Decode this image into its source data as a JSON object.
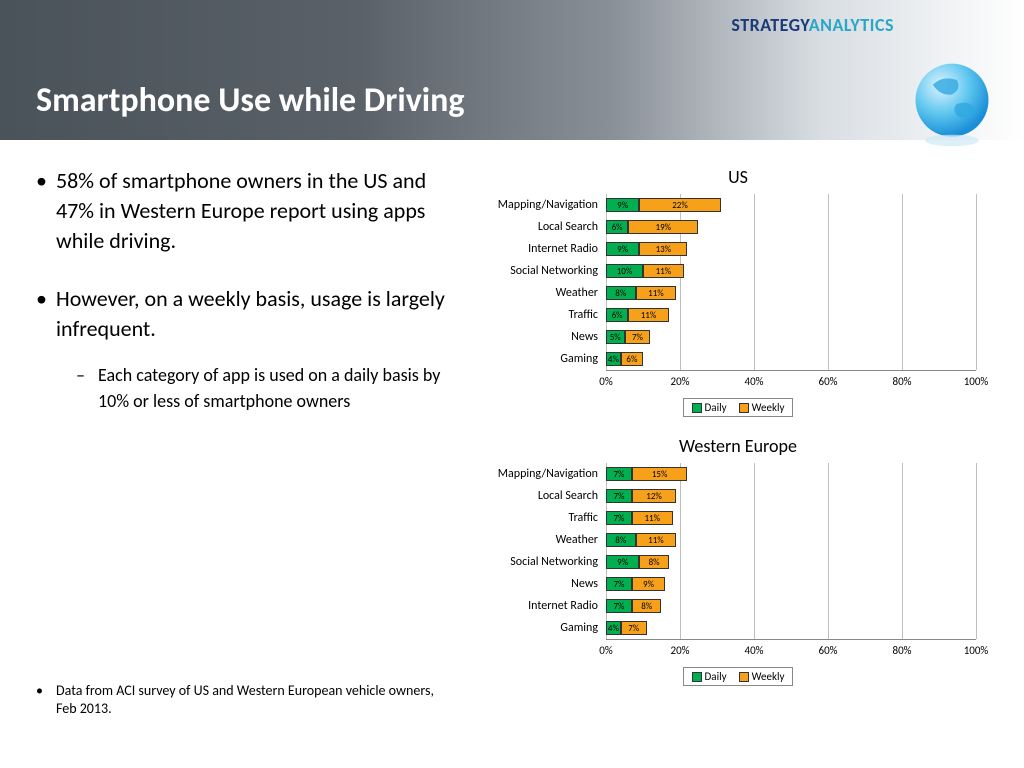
{
  "brand": {
    "part1": "STRATEGY",
    "part2": "ANALYTICS"
  },
  "title": "Smartphone Use while Driving",
  "bullets": [
    "58% of smartphone owners in the US and 47% in Western Europe report using apps while driving.",
    "However, on a weekly basis, usage is largely infrequent."
  ],
  "sub_bullet": "Each category of app is used on a daily basis by 10% or less of smartphone owners",
  "footnote": "Data from ACI survey of US and Western European vehicle owners, Feb 2013.",
  "colors": {
    "daily": "#00b050",
    "weekly": "#f7a11a",
    "grid": "#bfbfbf",
    "axis": "#888888",
    "text": "#000000"
  },
  "x_axis": {
    "min": 0,
    "max": 100,
    "step": 20,
    "ticks": [
      "0%",
      "20%",
      "40%",
      "60%",
      "80%",
      "100%"
    ]
  },
  "legend": {
    "daily": "Daily",
    "weekly": "Weekly"
  },
  "charts": [
    {
      "title": "US",
      "type": "stacked-horizontal-bar",
      "rows": [
        {
          "label": "Mapping/Navigation",
          "daily": 9,
          "weekly": 22
        },
        {
          "label": "Local Search",
          "daily": 6,
          "weekly": 19
        },
        {
          "label": "Internet Radio",
          "daily": 9,
          "weekly": 13
        },
        {
          "label": "Social Networking",
          "daily": 10,
          "weekly": 11
        },
        {
          "label": "Weather",
          "daily": 8,
          "weekly": 11
        },
        {
          "label": "Traffic",
          "daily": 6,
          "weekly": 11
        },
        {
          "label": "News",
          "daily": 5,
          "weekly": 7
        },
        {
          "label": "Gaming",
          "daily": 4,
          "weekly": 6
        }
      ]
    },
    {
      "title": "Western Europe",
      "type": "stacked-horizontal-bar",
      "rows": [
        {
          "label": "Mapping/Navigation",
          "daily": 7,
          "weekly": 15
        },
        {
          "label": "Local Search",
          "daily": 7,
          "weekly": 12
        },
        {
          "label": "Traffic",
          "daily": 7,
          "weekly": 11
        },
        {
          "label": "Weather",
          "daily": 8,
          "weekly": 11
        },
        {
          "label": "Social Networking",
          "daily": 9,
          "weekly": 8
        },
        {
          "label": "News",
          "daily": 7,
          "weekly": 9
        },
        {
          "label": "Internet Radio",
          "daily": 7,
          "weekly": 8
        },
        {
          "label": "Gaming",
          "daily": 4,
          "weekly": 7
        }
      ]
    }
  ]
}
